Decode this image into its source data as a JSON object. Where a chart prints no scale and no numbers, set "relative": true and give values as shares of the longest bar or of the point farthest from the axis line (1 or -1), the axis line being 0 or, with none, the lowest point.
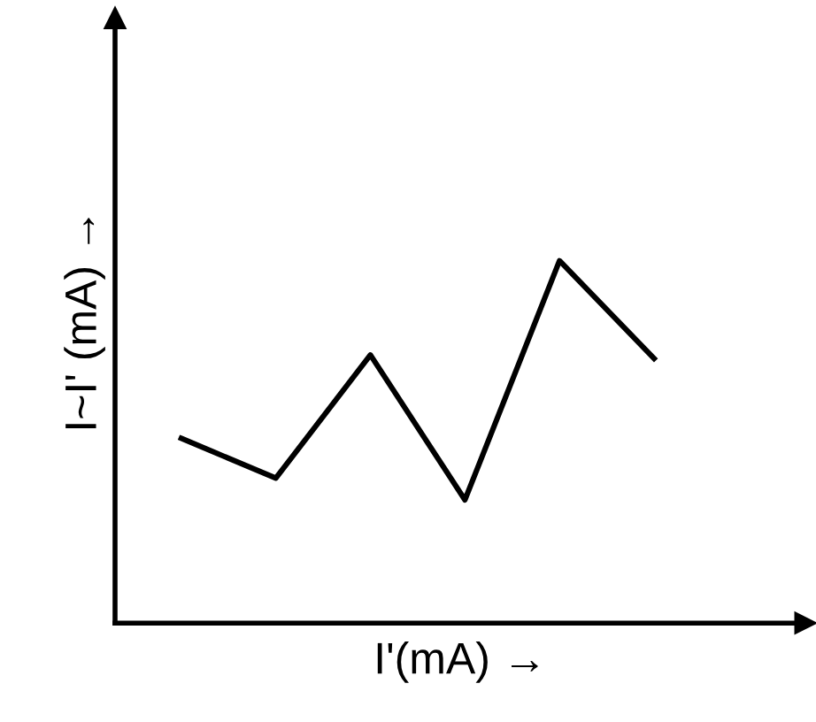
{
  "chart_data": {
    "type": "line",
    "relative": true,
    "xlabel": "I'(mA) →",
    "ylabel": "I~I' (mA) →",
    "categories": [
      null,
      null,
      null,
      null,
      null,
      null
    ],
    "series": [
      {
        "color": "#000000",
        "values": [
          0.51,
          0.4,
          0.74,
          0.34,
          1.0,
          0.73
        ]
      }
    ],
    "grid": false,
    "legend": false,
    "marker": "none",
    "line_style": "solid"
  }
}
